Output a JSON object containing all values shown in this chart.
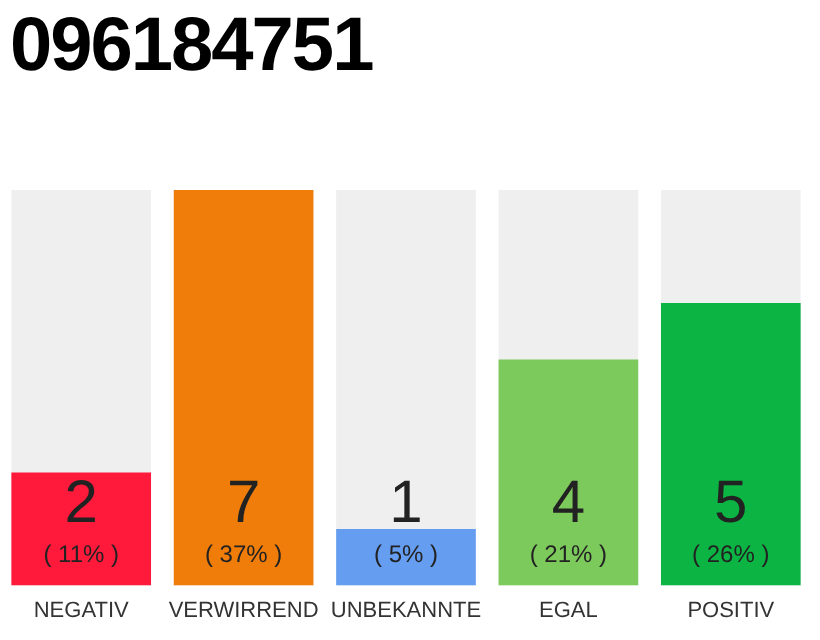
{
  "chart_data": {
    "type": "bar",
    "title": "096184751",
    "categories": [
      "NEGATIV",
      "VERWIRREND",
      "UNBEKANNTE",
      "EGAL",
      "POSITIV"
    ],
    "values": [
      2,
      7,
      1,
      4,
      5
    ],
    "colors": [
      "#ff1a3c",
      "#f07d0a",
      "#659df0",
      "#7dca5c",
      "#0bb443"
    ],
    "annotations": [
      "( 11% )",
      "( 37% )",
      "( 5% )",
      "( 21% )",
      "( 26% )"
    ],
    "data_labels": true,
    "tick_labels": "x",
    "grid": false,
    "legend": false
  }
}
